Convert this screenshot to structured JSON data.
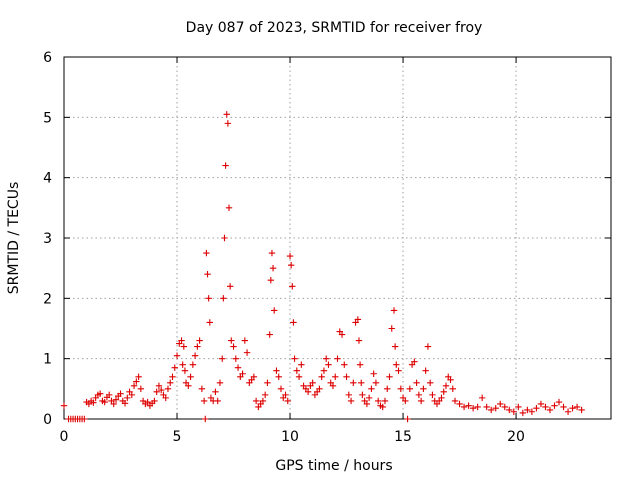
{
  "chart_data": {
    "type": "scatter",
    "title": "Day 087 of 2023, SRMTID for receiver froy",
    "xlabel": "GPS time / hours",
    "ylabel": "SRMTID / TECUs",
    "xlim": [
      0,
      24.2
    ],
    "ylim": [
      0,
      6
    ],
    "x_ticks": [
      0,
      5,
      10,
      15,
      20
    ],
    "y_ticks": [
      0,
      1,
      2,
      3,
      4,
      5,
      6
    ],
    "grid": true,
    "marker": "plus",
    "marker_color": "#dd0000",
    "series": [
      {
        "name": "SRMTID",
        "x": [
          0.0,
          0.2,
          0.3,
          0.4,
          0.5,
          0.6,
          0.7,
          0.8,
          0.9,
          1.0,
          1.1,
          1.2,
          1.3,
          1.4,
          1.5,
          1.6,
          1.7,
          1.8,
          1.9,
          2.0,
          2.1,
          2.2,
          2.3,
          2.4,
          2.5,
          2.6,
          2.7,
          2.8,
          2.9,
          3.0,
          3.1,
          3.2,
          3.3,
          3.4,
          3.5,
          3.6,
          3.7,
          3.8,
          3.9,
          4.0,
          4.1,
          4.2,
          4.3,
          4.4,
          4.5,
          4.6,
          4.7,
          4.8,
          4.9,
          5.0,
          5.1,
          5.2,
          5.25,
          5.3,
          5.35,
          5.4,
          5.5,
          5.6,
          5.7,
          5.8,
          5.9,
          6.0,
          6.1,
          6.2,
          6.25,
          6.3,
          6.35,
          6.4,
          6.45,
          6.5,
          6.6,
          6.7,
          6.8,
          6.9,
          7.0,
          7.05,
          7.1,
          7.15,
          7.2,
          7.25,
          7.3,
          7.35,
          7.4,
          7.5,
          7.6,
          7.7,
          7.8,
          7.9,
          8.0,
          8.1,
          8.2,
          8.3,
          8.4,
          8.5,
          8.6,
          8.7,
          8.8,
          8.9,
          9.0,
          9.1,
          9.15,
          9.2,
          9.25,
          9.3,
          9.4,
          9.5,
          9.6,
          9.7,
          9.8,
          9.9,
          10.0,
          10.05,
          10.1,
          10.15,
          10.2,
          10.3,
          10.4,
          10.5,
          10.6,
          10.7,
          10.8,
          10.9,
          11.0,
          11.1,
          11.2,
          11.3,
          11.4,
          11.5,
          11.6,
          11.7,
          11.8,
          11.9,
          12.0,
          12.1,
          12.2,
          12.3,
          12.4,
          12.5,
          12.6,
          12.7,
          12.8,
          12.9,
          13.0,
          13.05,
          13.1,
          13.15,
          13.2,
          13.3,
          13.4,
          13.5,
          13.6,
          13.7,
          13.8,
          13.9,
          14.0,
          14.1,
          14.2,
          14.3,
          14.4,
          14.5,
          14.6,
          14.65,
          14.7,
          14.8,
          14.9,
          15.0,
          15.1,
          15.2,
          15.3,
          15.4,
          15.5,
          15.6,
          15.7,
          15.8,
          15.9,
          16.0,
          16.1,
          16.2,
          16.3,
          16.4,
          16.5,
          16.6,
          16.7,
          16.8,
          16.9,
          17.0,
          17.1,
          17.2,
          17.3,
          17.5,
          17.7,
          17.9,
          18.1,
          18.3,
          18.5,
          18.7,
          18.9,
          19.1,
          19.3,
          19.5,
          19.7,
          19.9,
          20.1,
          20.3,
          20.5,
          20.7,
          20.9,
          21.1,
          21.3,
          21.5,
          21.7,
          21.9,
          22.1,
          22.3,
          22.5,
          22.7,
          22.9
        ],
        "y": [
          0.22,
          0.0,
          0.0,
          0.0,
          0.0,
          0.0,
          0.0,
          0.0,
          0.0,
          0.28,
          0.25,
          0.3,
          0.27,
          0.35,
          0.4,
          0.42,
          0.3,
          0.28,
          0.36,
          0.4,
          0.3,
          0.25,
          0.32,
          0.38,
          0.42,
          0.3,
          0.26,
          0.35,
          0.45,
          0.4,
          0.55,
          0.62,
          0.7,
          0.5,
          0.3,
          0.25,
          0.28,
          0.22,
          0.26,
          0.3,
          0.45,
          0.55,
          0.48,
          0.4,
          0.35,
          0.5,
          0.6,
          0.7,
          0.85,
          1.05,
          1.25,
          1.3,
          0.9,
          1.2,
          0.8,
          0.6,
          0.55,
          0.7,
          0.9,
          1.05,
          1.2,
          1.3,
          0.5,
          0.3,
          0.0,
          2.75,
          2.4,
          2.0,
          1.6,
          0.35,
          0.3,
          0.45,
          0.3,
          0.6,
          1.0,
          2.0,
          3.0,
          4.2,
          5.05,
          4.9,
          3.5,
          2.2,
          1.3,
          1.2,
          1.0,
          0.85,
          0.7,
          0.75,
          1.3,
          1.1,
          0.6,
          0.65,
          0.7,
          0.3,
          0.2,
          0.25,
          0.3,
          0.4,
          0.6,
          1.4,
          2.3,
          2.75,
          2.5,
          1.8,
          0.8,
          0.7,
          0.5,
          0.35,
          0.4,
          0.3,
          2.7,
          2.55,
          2.2,
          1.6,
          1.0,
          0.8,
          0.7,
          0.9,
          0.55,
          0.5,
          0.45,
          0.55,
          0.6,
          0.4,
          0.45,
          0.5,
          0.7,
          0.8,
          1.0,
          0.9,
          0.6,
          0.55,
          0.7,
          1.0,
          1.45,
          1.4,
          0.9,
          0.7,
          0.4,
          0.3,
          0.6,
          1.6,
          1.65,
          1.3,
          0.9,
          0.6,
          0.4,
          0.3,
          0.25,
          0.35,
          0.5,
          0.75,
          0.6,
          0.3,
          0.22,
          0.2,
          0.3,
          0.5,
          0.7,
          1.5,
          1.8,
          1.2,
          0.9,
          0.8,
          0.5,
          0.35,
          0.3,
          0.0,
          0.5,
          0.9,
          0.95,
          0.6,
          0.4,
          0.3,
          0.5,
          0.8,
          1.2,
          0.6,
          0.4,
          0.3,
          0.25,
          0.3,
          0.35,
          0.45,
          0.55,
          0.7,
          0.65,
          0.5,
          0.3,
          0.25,
          0.2,
          0.22,
          0.18,
          0.2,
          0.35,
          0.2,
          0.15,
          0.18,
          0.25,
          0.2,
          0.15,
          0.12,
          0.2,
          0.1,
          0.15,
          0.12,
          0.18,
          0.25,
          0.2,
          0.15,
          0.22,
          0.28,
          0.2,
          0.12,
          0.18,
          0.2,
          0.15
        ]
      }
    ]
  }
}
